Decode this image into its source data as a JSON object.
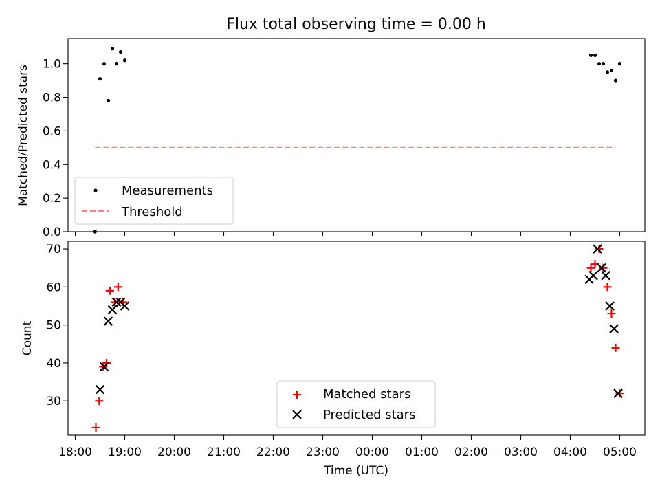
{
  "chart_data": [
    {
      "type": "scatter",
      "title": "Flux total observing time = 0.00 h",
      "xlabel": "",
      "ylabel": "Matched/Predicted stars",
      "ylim": [
        0,
        1.15
      ],
      "yticks": [
        "0.0",
        "0.2",
        "0.4",
        "0.6",
        "0.8",
        "1.0"
      ],
      "ytick_values": [
        0,
        0.2,
        0.4,
        0.6,
        0.8,
        1.0
      ],
      "xtick_labels_visible": false,
      "legend_position": "lower-left",
      "series": [
        {
          "name": "Measurements",
          "marker": "dot",
          "color": "#000000",
          "x": [
            "18:24",
            "18:30",
            "18:35",
            "18:40",
            "18:45",
            "18:50",
            "18:55",
            "19:00",
            "04:25",
            "04:30",
            "04:35",
            "04:40",
            "04:45",
            "04:50",
            "04:55",
            "05:00"
          ],
          "y": [
            0.0,
            0.91,
            1.0,
            0.78,
            1.09,
            1.0,
            1.07,
            1.02,
            1.05,
            1.05,
            1.0,
            1.0,
            0.95,
            0.96,
            0.9,
            1.0
          ]
        },
        {
          "name": "Threshold",
          "style": "dashed",
          "color": "#ff8080",
          "x": [
            "18:24",
            "04:55"
          ],
          "y": [
            0.5,
            0.5
          ]
        }
      ]
    },
    {
      "type": "scatter",
      "xlabel": "Time (UTC)",
      "ylabel": "Count",
      "ylim": [
        21,
        72
      ],
      "yticks": [
        "30",
        "40",
        "50",
        "60",
        "70"
      ],
      "ytick_values": [
        30,
        40,
        50,
        60,
        70
      ],
      "xticks": [
        "18:00",
        "19:00",
        "20:00",
        "21:00",
        "22:00",
        "23:00",
        "00:00",
        "01:00",
        "02:00",
        "03:00",
        "04:00",
        "05:00"
      ],
      "legend_position": "lower-center",
      "series": [
        {
          "name": "Matched stars",
          "marker": "plus",
          "color": "#ff0000",
          "x": [
            "18:25",
            "18:29",
            "18:34",
            "18:38",
            "18:42",
            "18:48",
            "18:52",
            "18:58",
            "04:25",
            "04:30",
            "04:35",
            "04:40",
            "04:45",
            "04:50",
            "04:55",
            "05:00"
          ],
          "y": [
            23,
            30,
            39,
            40,
            59,
            56,
            60,
            56,
            65,
            66,
            70,
            65,
            60,
            53,
            44,
            32
          ]
        },
        {
          "name": "Predicted stars",
          "marker": "x",
          "color": "#000000",
          "x": [
            "18:30",
            "18:35",
            "18:40",
            "18:45",
            "18:50",
            "18:55",
            "19:00",
            "04:23",
            "04:28",
            "04:33",
            "04:38",
            "04:43",
            "04:48",
            "04:53",
            "04:58"
          ],
          "y": [
            33,
            39,
            51,
            54,
            56,
            56,
            55,
            62,
            63,
            70,
            65,
            63,
            55,
            49,
            32
          ]
        }
      ]
    }
  ]
}
